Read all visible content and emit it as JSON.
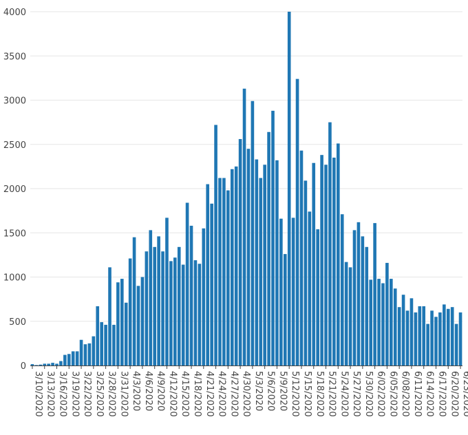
{
  "chart_data": {
    "type": "bar",
    "title": "",
    "xlabel": "",
    "ylabel": "",
    "ylim": [
      0,
      4000
    ],
    "yticks": [
      0,
      500,
      1000,
      1500,
      2000,
      2500,
      3000,
      3500,
      4000
    ],
    "grid": true,
    "legend": "none",
    "bar_color": "#1f77b4",
    "start_date": "2020-03-10",
    "xtick_labels": [
      "3/10/2020",
      "3/13/2020",
      "3/16/2020",
      "3/19/2020",
      "3/22/2020",
      "3/25/2020",
      "3/28/2020",
      "3/31/2020",
      "4/3/2020",
      "4/6/2020",
      "4/9/2020",
      "4/12/2020",
      "4/15/2020",
      "4/18/2020",
      "4/21/2020",
      "4/24/2020",
      "4/27/2020",
      "4/30/2020",
      "5/3/2020",
      "5/6/2020",
      "5/9/2020",
      "5/12/2020",
      "5/15/2020",
      "5/18/2020",
      "5/21/2020",
      "5/24/2020",
      "5/27/2020",
      "5/30/2020",
      "6/02/2020",
      "6/05/2020",
      "6/08/2020",
      "6/11/2020",
      "6/14/2020",
      "6/17/2020",
      "6/20/2020",
      "6/23/2020"
    ],
    "values": [
      15,
      5,
      10,
      20,
      20,
      30,
      20,
      50,
      120,
      130,
      160,
      160,
      290,
      240,
      250,
      330,
      670,
      490,
      460,
      1110,
      460,
      940,
      980,
      710,
      1210,
      1450,
      900,
      1000,
      1290,
      1530,
      1340,
      1460,
      1290,
      1670,
      1180,
      1220,
      1340,
      1140,
      1840,
      1580,
      1190,
      1150,
      1550,
      2050,
      1830,
      2720,
      2120,
      2120,
      1980,
      2220,
      2250,
      2560,
      3130,
      2450,
      2990,
      2330,
      2120,
      2270,
      2640,
      2880,
      2320,
      1660,
      1260,
      4000,
      1670,
      3240,
      2430,
      2090,
      1740,
      2290,
      1540,
      2380,
      2270,
      2750,
      2350,
      2510,
      1710,
      1170,
      1110,
      1530,
      1620,
      1460,
      1340,
      970,
      1610,
      980,
      930,
      1160,
      980,
      870,
      660,
      800,
      620,
      760,
      600,
      670,
      670,
      470,
      620,
      550,
      600,
      690,
      640,
      660,
      470,
      600
    ]
  }
}
